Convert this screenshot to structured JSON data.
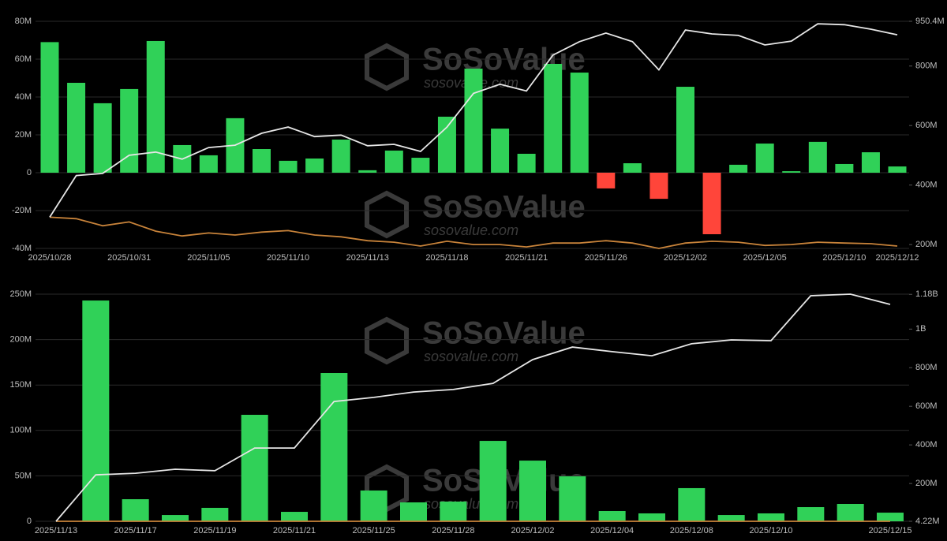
{
  "watermark": {
    "brand": "SoSoValue",
    "site": "sosovalue.com"
  },
  "chart_data": [
    {
      "type": "bar",
      "categories": [
        "2025/10/28",
        null,
        null,
        "2025/10/31",
        null,
        null,
        "2025/11/05",
        null,
        null,
        "2025/11/10",
        null,
        null,
        "2025/11/13",
        null,
        null,
        "2025/11/18",
        null,
        null,
        "2025/11/21",
        null,
        null,
        "2025/11/26",
        null,
        null,
        "2025/12/02",
        null,
        null,
        "2025/12/05",
        null,
        null,
        "2025/12/10",
        null,
        "2025/12/12"
      ],
      "series": [
        {
          "type": "bar",
          "color": "#30d158",
          "negative_color": "#ff453a",
          "values": [
            69,
            47.5,
            36.7,
            44.2,
            69.6,
            14.6,
            9.2,
            28.8,
            12.5,
            6.3,
            7.5,
            17.5,
            1.3,
            11.7,
            7.9,
            29.6,
            55,
            23.3,
            10,
            57.5,
            52.9,
            -8.3,
            5,
            -13.8,
            45.4,
            -32.5,
            4.2,
            15.4,
            0.8,
            16.3,
            4.6,
            10.8,
            3.3
          ]
        },
        {
          "type": "line",
          "axis": "y2",
          "color": "#e6e6e6",
          "values": [
            292,
            432,
            439,
            500,
            511,
            487,
            526,
            534,
            574,
            595,
            563,
            568,
            532,
            537,
            513,
            595,
            708,
            739,
            716,
            837,
            882,
            911,
            882,
            787,
            921,
            908,
            903,
            871,
            884,
            942,
            939,
            924,
            905
          ]
        },
        {
          "type": "line",
          "axis": "y2",
          "color": "#c8833a",
          "values": [
            292,
            287,
            263,
            276,
            245,
            229,
            239,
            232,
            242,
            247,
            232,
            226,
            213,
            208,
            195,
            211,
            200,
            200,
            192,
            205,
            205,
            213,
            205,
            187,
            205,
            211,
            208,
            197,
            200,
            208,
            205,
            203,
            195
          ]
        }
      ],
      "ylim": [
        -40,
        80
      ],
      "yticks": [
        {
          "value": -40,
          "label": "-40M"
        },
        {
          "value": -20,
          "label": "-20M"
        },
        0,
        {
          "value": 20,
          "label": "20M"
        },
        {
          "value": 40,
          "label": "40M"
        },
        {
          "value": 60,
          "label": "60M"
        },
        {
          "value": 80,
          "label": "80M"
        }
      ],
      "y2lim": [
        187,
        950.4
      ],
      "y2ticks": [
        {
          "value": 200,
          "label": "200M"
        },
        {
          "value": 400,
          "label": "400M"
        },
        {
          "value": 600,
          "label": "600M"
        },
        {
          "value": 800,
          "label": "800M"
        },
        {
          "value": 950.4,
          "label": "950.4M"
        }
      ],
      "grid": true
    },
    {
      "type": "bar",
      "categories": [
        "2025/11/13",
        null,
        "2025/11/17",
        null,
        "2025/11/19",
        null,
        "2025/11/21",
        null,
        "2025/11/25",
        null,
        "2025/11/28",
        null,
        "2025/12/02",
        null,
        "2025/12/04",
        null,
        "2025/12/08",
        null,
        "2025/12/10",
        null,
        null,
        "2025/12/15"
      ],
      "series": [
        {
          "type": "bar",
          "color": "#30d158",
          "negative_color": "#ff453a",
          "values": [
            0,
            243,
            24.3,
            6.9,
            14.8,
            117.2,
            10.4,
            163.2,
            33.9,
            20.8,
            21.7,
            88.5,
            66.8,
            49.5,
            11.3,
            8.7,
            36.5,
            6.9,
            8.7,
            15.6,
            19.1,
            9.5
          ]
        },
        {
          "type": "line",
          "axis": "y2",
          "color": "#e6e6e6",
          "values": [
            4.22,
            245,
            253,
            274,
            266,
            384,
            384,
            625,
            646,
            674,
            687,
            719,
            842,
            907,
            883,
            862,
            924,
            944,
            940,
            1173,
            1181,
            1128
          ]
        },
        {
          "type": "line",
          "axis": "y2",
          "color": "#c8833a",
          "values": [
            4.22,
            4.22,
            4.22,
            4.22,
            4.22,
            4.22,
            4.22,
            4.22,
            4.22,
            4.22,
            4.22,
            4.22,
            4.22,
            4.22,
            4.22,
            4.22,
            4.22,
            4.22,
            4.22,
            4.22,
            4.22,
            4.22
          ]
        }
      ],
      "ylim": [
        0,
        250
      ],
      "yticks": [
        0,
        {
          "value": 50,
          "label": "50M"
        },
        {
          "value": 100,
          "label": "100M"
        },
        {
          "value": 150,
          "label": "150M"
        },
        {
          "value": 200,
          "label": "200M"
        },
        {
          "value": 250,
          "label": "250M"
        }
      ],
      "y2lim": [
        4.22,
        1181
      ],
      "y2ticks": [
        {
          "value": 4.22,
          "label": "4.22M"
        },
        {
          "value": 200,
          "label": "200M"
        },
        {
          "value": 400,
          "label": "400M"
        },
        {
          "value": 600,
          "label": "600M"
        },
        {
          "value": 800,
          "label": "800M"
        },
        {
          "value": 1000,
          "label": "1B"
        },
        {
          "value": 1180,
          "label": "1.18B"
        }
      ],
      "grid": true
    }
  ]
}
